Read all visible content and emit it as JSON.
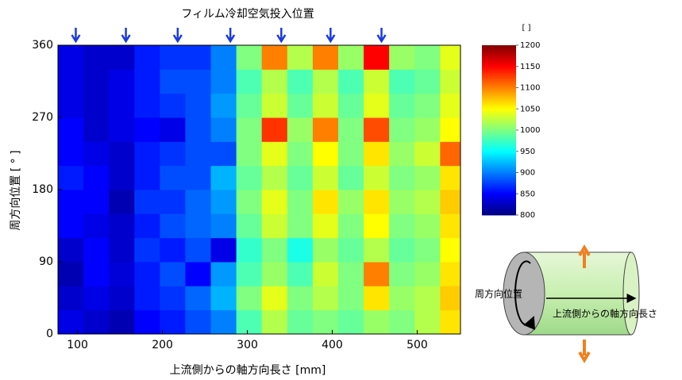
{
  "chart_data": {
    "type": "heatmap",
    "title": "フィルム冷却空気投入位置",
    "x_label": "上流側からの軸方向長さ [mm]",
    "y_label": "周方向位置 [ ° ]",
    "xlim": [
      77,
      551
    ],
    "ylim": [
      0,
      360
    ],
    "xticks": [
      100,
      200,
      300,
      400,
      500
    ],
    "yticks": [
      0,
      90,
      180,
      270,
      360
    ],
    "xbins": [
      77,
      107,
      137,
      167,
      197,
      227,
      257,
      287,
      317,
      347,
      377,
      407,
      437,
      467,
      497,
      527,
      551
    ],
    "ybins": [
      0,
      30,
      60,
      90,
      120,
      150,
      180,
      210,
      240,
      270,
      300,
      330,
      360
    ],
    "z": [
      [
        840,
        830,
        820,
        850,
        860,
        880,
        900,
        980,
        1020,
        990,
        1000,
        990,
        1010,
        1000,
        1020,
        1060
      ],
      [
        830,
        840,
        830,
        860,
        870,
        890,
        920,
        1000,
        1040,
        1000,
        1020,
        1000,
        1060,
        1010,
        1020,
        1070
      ],
      [
        820,
        850,
        835,
        860,
        880,
        850,
        910,
        980,
        1010,
        980,
        1030,
        1000,
        1100,
        1000,
        1010,
        1060
      ],
      [
        830,
        850,
        830,
        870,
        860,
        880,
        840,
        970,
        1000,
        960,
        1010,
        990,
        1020,
        990,
        1000,
        1050
      ],
      [
        850,
        840,
        830,
        860,
        880,
        890,
        900,
        990,
        1030,
        1000,
        1040,
        1000,
        1050,
        1000,
        1010,
        1060
      ],
      [
        850,
        850,
        820,
        870,
        870,
        890,
        910,
        1000,
        1040,
        1000,
        1060,
        1010,
        1060,
        1010,
        1020,
        1070
      ],
      [
        860,
        850,
        830,
        860,
        880,
        880,
        920,
        990,
        1020,
        990,
        1030,
        990,
        1030,
        1000,
        1010,
        1060
      ],
      [
        850,
        840,
        830,
        860,
        870,
        880,
        880,
        1000,
        1040,
        1000,
        1050,
        1000,
        1060,
        1010,
        1030,
        1110
      ],
      [
        850,
        830,
        840,
        850,
        840,
        880,
        900,
        1000,
        1130,
        1010,
        1100,
        1000,
        1120,
        1000,
        1010,
        1050
      ],
      [
        840,
        830,
        840,
        860,
        870,
        880,
        910,
        990,
        1030,
        990,
        1030,
        990,
        1040,
        990,
        1000,
        1040
      ],
      [
        840,
        830,
        840,
        860,
        880,
        880,
        900,
        980,
        1020,
        980,
        1020,
        980,
        1030,
        980,
        990,
        1030
      ],
      [
        840,
        830,
        830,
        860,
        870,
        870,
        900,
        1000,
        1100,
        1020,
        1100,
        1010,
        1150,
        1010,
        1000,
        1040
      ]
    ],
    "injection_x": [
      98,
      157,
      218,
      280,
      340,
      398,
      458
    ],
    "arrow_color": "#1a3be0",
    "colorbar": {
      "label": "[ ]",
      "zlim": [
        800,
        1200
      ],
      "ticks": [
        800,
        850,
        900,
        950,
        1000,
        1050,
        1100,
        1150,
        1200
      ]
    },
    "inset": {
      "circumferential_label": "周方向位置",
      "axial_label": "上流側からの軸方向長さ"
    }
  }
}
